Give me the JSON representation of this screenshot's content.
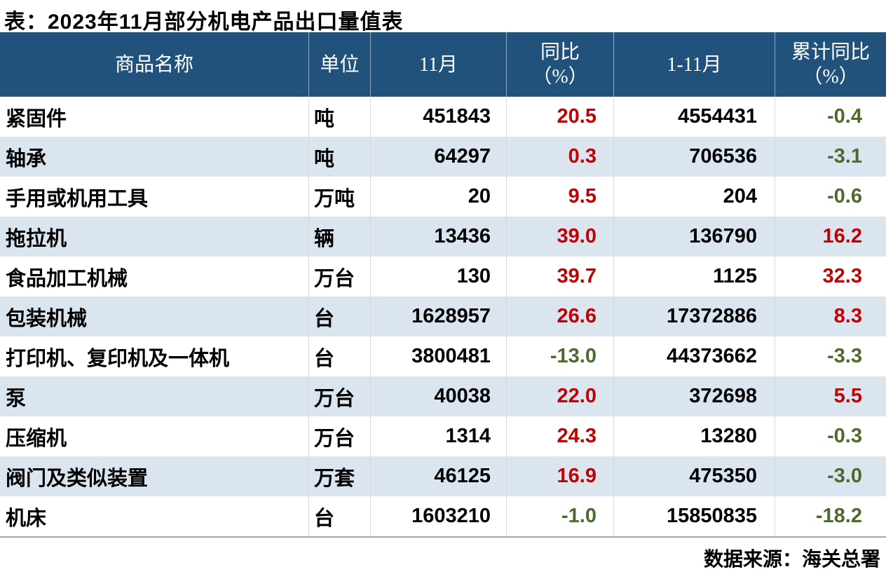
{
  "chart_data": {
    "type": "table",
    "title": "表：2023年11月部分机电产品出口量值表",
    "source": "数据来源：海关总署",
    "header": {
      "name": "商品名称",
      "unit": "单位",
      "nov": "11月",
      "yoy_line1": "同比",
      "yoy_line2": "（%）",
      "jan_nov": "1-11月",
      "cum_line1": "累计同比",
      "cum_line2": "（%）"
    },
    "columns": [
      "商品名称",
      "单位",
      "11月",
      "同比（%）",
      "1-11月",
      "累计同比（%）"
    ],
    "rows": [
      [
        "紧固件",
        "吨",
        "451843",
        "20.5",
        "4554431",
        "-0.4"
      ],
      [
        "轴承",
        "吨",
        "64297",
        "0.3",
        "706536",
        "-3.1"
      ],
      [
        "手用或机用工具",
        "万吨",
        "20",
        "9.5",
        "204",
        "-0.6"
      ],
      [
        "拖拉机",
        "辆",
        "13436",
        "39.0",
        "136790",
        "16.2"
      ],
      [
        "食品加工机械",
        "万台",
        "130",
        "39.7",
        "1125",
        "32.3"
      ],
      [
        "包装机械",
        "台",
        "1628957",
        "26.6",
        "17372886",
        "8.3"
      ],
      [
        "打印机、复印机及一体机",
        "台",
        "3800481",
        "-13.0",
        "44373662",
        "-3.3"
      ],
      [
        "泵",
        "万台",
        "40038",
        "22.0",
        "372698",
        "5.5"
      ],
      [
        "压缩机",
        "万台",
        "1314",
        "24.3",
        "13280",
        "-0.3"
      ],
      [
        "阀门及类似装置",
        "万套",
        "46125",
        "16.9",
        "475350",
        "-3.0"
      ],
      [
        "机床",
        "台",
        "1603210",
        "-1.0",
        "15850835",
        "-18.2"
      ]
    ]
  },
  "colors": {
    "header_bg": "#21527B",
    "stripe": "#DBE5F0",
    "positive": "#C00000",
    "negative": "#4A6B2A",
    "bottom_border": "#95AECF"
  }
}
